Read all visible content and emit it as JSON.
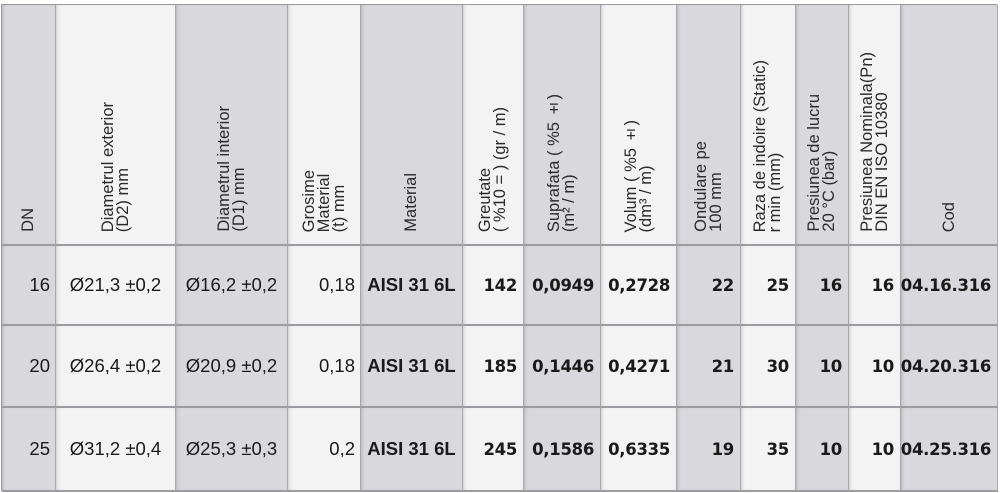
{
  "colors": {
    "dark_column": "#d9d9dd",
    "light_column": "#f3f3f3",
    "text": "#1a1a1a"
  },
  "headers": [
    "DN",
    "Diametrul exterior\n(D2) mm",
    "Diametrul interior\n(D1) mm",
    "Grosime\nMaterial\n(t) mm",
    "Material",
    "Greutate\n( %10 = ) (gr / m)",
    "Suprafata ( %5 ±)\n(m² / m)",
    "Volum ( %5 ±)\n(dm³ / m)",
    "Ondulare pe\n100 mm",
    "Raza de indoire (Static)\nr min (mm)",
    "Presiunea de lucru\n20 °C (bar)",
    "Presiunea Nominala(Pn)\nDIN EN ISO 10380",
    "Cod"
  ],
  "rows": [
    [
      "16",
      "Ø21,3 ±0,2",
      "Ø16,2 ±0,2",
      "0,18",
      "AISI 31 6L",
      "142",
      "0,0949",
      "0,2728",
      "22",
      "25",
      "16",
      "16",
      "04.16.316"
    ],
    [
      "20",
      "Ø26,4 ±0,2",
      "Ø20,9 ±0,2",
      "0,18",
      "AISI 31 6L",
      "185",
      "0,1446",
      "0,4271",
      "21",
      "30",
      "10",
      "10",
      "04.20.316"
    ],
    [
      "25",
      "Ø31,2 ±0,4",
      "Ø25,3 ±0,3",
      "0,2",
      "AISI 31 6L",
      "245",
      "0,1586",
      "0,6335",
      "19",
      "35",
      "10",
      "10",
      "04.25.316"
    ]
  ]
}
